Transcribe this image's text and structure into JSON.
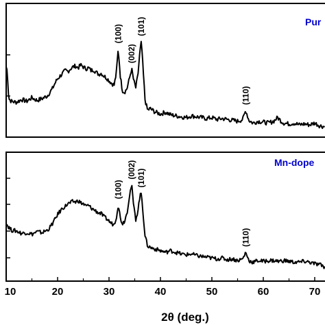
{
  "chart_data": [
    {
      "type": "line",
      "label": "Pur",
      "label_color": "#0000cc",
      "line_color": "#000000",
      "x_range": [
        10,
        72
      ],
      "peaks": [
        {
          "label": "(100)",
          "x": 31.8
        },
        {
          "label": "(002)",
          "x": 34.4
        },
        {
          "label": "(101)",
          "x": 36.3
        },
        {
          "label": "(110)",
          "x": 56.6
        }
      ],
      "series": [
        {
          "x": [
            10,
            10.2,
            10.5,
            11,
            12,
            13,
            14,
            15,
            16,
            17,
            18,
            18.5,
            19,
            19.5,
            20,
            20.5,
            21,
            21.5,
            22,
            22.5,
            23,
            23.5,
            24,
            24.5,
            25,
            25.5,
            26,
            26.5,
            27,
            27.5,
            28,
            28.5,
            29,
            29.5,
            30,
            30.5,
            31,
            31.4,
            31.8,
            32.2,
            32.6,
            33,
            33.5,
            34,
            34.4,
            34.8,
            35.2,
            35.6,
            36,
            36.3,
            36.6,
            37,
            37.5,
            38,
            39,
            40,
            41,
            42,
            43,
            44,
            45,
            46,
            47,
            48,
            49,
            50,
            51,
            52,
            53,
            54,
            55,
            56,
            56.6,
            57.2,
            58,
            59,
            60,
            61,
            62,
            62.8,
            63.5,
            64,
            65,
            66,
            67,
            68,
            69,
            70,
            71,
            72
          ],
          "y": [
            0.7,
            0.66,
            0.35,
            0.32,
            0.31,
            0.34,
            0.32,
            0.36,
            0.33,
            0.35,
            0.38,
            0.42,
            0.46,
            0.52,
            0.57,
            0.6,
            0.63,
            0.66,
            0.65,
            0.68,
            0.7,
            0.71,
            0.69,
            0.72,
            0.7,
            0.68,
            0.69,
            0.66,
            0.67,
            0.64,
            0.62,
            0.63,
            0.6,
            0.58,
            0.55,
            0.52,
            0.5,
            0.62,
            0.9,
            0.6,
            0.44,
            0.42,
            0.46,
            0.58,
            0.68,
            0.55,
            0.47,
            0.6,
            0.86,
            0.98,
            0.7,
            0.34,
            0.22,
            0.24,
            0.2,
            0.18,
            0.2,
            0.17,
            0.16,
            0.15,
            0.14,
            0.16,
            0.15,
            0.14,
            0.13,
            0.14,
            0.12,
            0.13,
            0.12,
            0.11,
            0.1,
            0.12,
            0.22,
            0.11,
            0.08,
            0.1,
            0.09,
            0.08,
            0.1,
            0.14,
            0.1,
            0.08,
            0.07,
            0.08,
            0.06,
            0.07,
            0.06,
            0.08,
            0.05,
            0.04
          ]
        }
      ]
    },
    {
      "type": "line",
      "label": "Mn-dope",
      "label_color": "#0000cc",
      "line_color": "#000000",
      "x_range": [
        10,
        72
      ],
      "xlabel": "2θ (deg.)",
      "x_ticks": [
        10,
        20,
        30,
        40,
        50,
        60,
        70
      ],
      "peaks": [
        {
          "label": "(100)",
          "x": 31.8
        },
        {
          "label": "(002)",
          "x": 34.4
        },
        {
          "label": "(101)",
          "x": 36.3
        },
        {
          "label": "(110)",
          "x": 56.6
        }
      ],
      "series": [
        {
          "x": [
            10,
            10.3,
            10.6,
            11,
            12,
            13,
            14,
            15,
            16,
            17,
            18,
            18.5,
            19,
            19.5,
            20,
            20.5,
            21,
            21.5,
            22,
            22.5,
            23,
            23.5,
            24,
            24.5,
            25,
            25.5,
            26,
            26.5,
            27,
            27.5,
            28,
            28.5,
            29,
            29.5,
            30,
            30.5,
            31,
            31.4,
            31.8,
            32.2,
            32.6,
            33,
            33.5,
            34,
            34.4,
            34.8,
            35.2,
            35.6,
            36,
            36.3,
            36.6,
            37,
            37.5,
            38,
            39,
            40,
            41,
            42,
            43,
            44,
            45,
            46,
            47,
            48,
            49,
            50,
            51,
            52,
            53,
            54,
            55,
            56,
            56.6,
            57.2,
            58,
            59,
            60,
            61,
            62,
            63,
            64,
            65,
            66,
            67,
            68,
            69,
            70,
            71,
            72
          ],
          "y": [
            0.56,
            0.52,
            0.5,
            0.47,
            0.46,
            0.43,
            0.44,
            0.42,
            0.45,
            0.44,
            0.47,
            0.5,
            0.55,
            0.6,
            0.66,
            0.7,
            0.74,
            0.76,
            0.79,
            0.8,
            0.82,
            0.81,
            0.83,
            0.8,
            0.79,
            0.76,
            0.77,
            0.74,
            0.72,
            0.7,
            0.68,
            0.67,
            0.63,
            0.61,
            0.58,
            0.55,
            0.54,
            0.62,
            0.78,
            0.62,
            0.55,
            0.58,
            0.68,
            0.9,
            1.02,
            0.76,
            0.6,
            0.7,
            0.88,
            0.92,
            0.7,
            0.4,
            0.28,
            0.26,
            0.24,
            0.22,
            0.2,
            0.22,
            0.2,
            0.18,
            0.17,
            0.18,
            0.16,
            0.15,
            0.14,
            0.13,
            0.12,
            0.13,
            0.11,
            0.12,
            0.1,
            0.12,
            0.2,
            0.1,
            0.08,
            0.1,
            0.09,
            0.1,
            0.1,
            0.09,
            0.1,
            0.09,
            0.08,
            0.08,
            0.09,
            0.08,
            0.06,
            0.05,
            0.02
          ]
        }
      ]
    }
  ]
}
